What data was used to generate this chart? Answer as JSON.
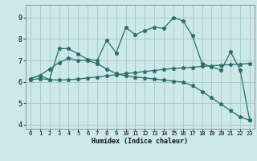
{
  "xlabel": "Humidex (Indice chaleur)",
  "background_color": "#cce8e8",
  "grid_color": "#aacccc",
  "line_color": "#2a6b6b",
  "xlim": [
    -0.5,
    23.5
  ],
  "ylim": [
    3.8,
    9.6
  ],
  "yticks": [
    4,
    5,
    6,
    7,
    8,
    9
  ],
  "xticks": [
    0,
    1,
    2,
    3,
    4,
    5,
    6,
    7,
    8,
    9,
    10,
    11,
    12,
    13,
    14,
    15,
    16,
    17,
    18,
    19,
    20,
    21,
    22,
    23
  ],
  "series1_x": [
    0,
    1,
    2,
    3,
    4,
    5,
    6,
    7,
    8,
    9,
    10,
    11,
    12,
    13,
    14,
    15,
    16,
    17,
    18,
    19,
    20,
    21,
    22,
    23
  ],
  "series1_y": [
    6.15,
    6.3,
    6.1,
    7.55,
    7.55,
    7.3,
    7.05,
    7.0,
    7.95,
    7.35,
    8.55,
    8.2,
    8.4,
    8.55,
    8.5,
    9.0,
    8.85,
    8.15,
    6.85,
    6.7,
    6.55,
    7.4,
    6.55,
    4.2
  ],
  "series2_x": [
    0,
    1,
    2,
    3,
    4,
    5,
    6,
    7,
    8,
    9,
    10,
    11,
    12,
    13,
    14,
    15,
    16,
    17,
    18,
    19,
    20,
    21,
    22,
    23
  ],
  "series2_y": [
    6.1,
    6.15,
    6.1,
    6.08,
    6.1,
    6.12,
    6.18,
    6.22,
    6.28,
    6.33,
    6.38,
    6.43,
    6.48,
    6.53,
    6.58,
    6.62,
    6.65,
    6.68,
    6.72,
    6.75,
    6.78,
    6.8,
    6.83,
    6.86
  ],
  "series3_x": [
    0,
    1,
    2,
    3,
    4,
    5,
    6,
    7,
    8,
    9,
    10,
    11,
    12,
    13,
    14,
    15,
    16,
    17,
    18,
    19,
    20,
    21,
    22,
    23
  ],
  "series3_y": [
    6.15,
    6.3,
    6.6,
    6.9,
    7.1,
    7.0,
    7.0,
    6.85,
    6.6,
    6.38,
    6.28,
    6.22,
    6.18,
    6.13,
    6.08,
    6.03,
    5.98,
    5.82,
    5.55,
    5.25,
    4.95,
    4.65,
    4.35,
    4.2
  ]
}
